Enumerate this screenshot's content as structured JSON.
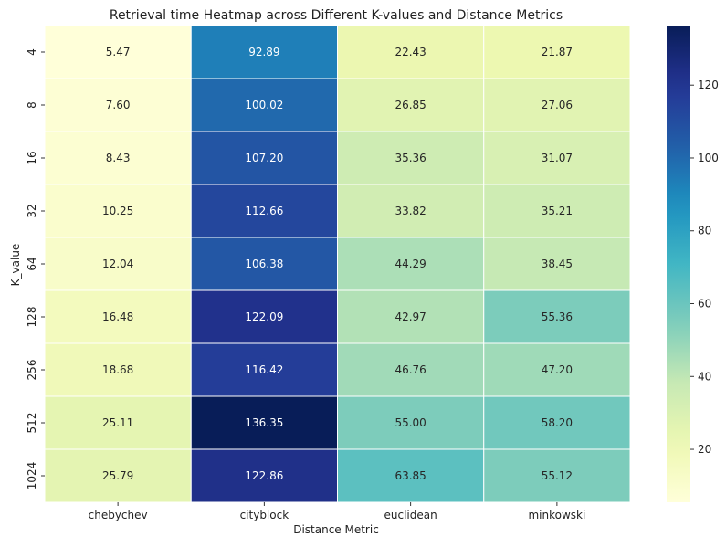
{
  "chart_data": {
    "type": "heatmap",
    "title": "Retrieval time Heatmap across Different K-values and Distance Metrics",
    "xlabel": "Distance Metric",
    "ylabel": "K_value",
    "x_categories": [
      "chebychev",
      "cityblock",
      "euclidean",
      "minkowski"
    ],
    "y_categories": [
      "4",
      "8",
      "16",
      "32",
      "64",
      "128",
      "256",
      "512",
      "1024"
    ],
    "values": [
      [
        5.47,
        92.89,
        22.43,
        21.87
      ],
      [
        7.6,
        100.02,
        26.85,
        27.06
      ],
      [
        8.43,
        107.2,
        35.36,
        31.07
      ],
      [
        10.25,
        112.66,
        33.82,
        35.21
      ],
      [
        12.04,
        106.38,
        44.29,
        38.45
      ],
      [
        16.48,
        122.09,
        42.97,
        55.36
      ],
      [
        18.68,
        116.42,
        46.76,
        47.2
      ],
      [
        25.11,
        136.35,
        55.0,
        58.2
      ],
      [
        25.79,
        122.86,
        63.85,
        55.12
      ]
    ],
    "value_labels": [
      [
        "5.47",
        "92.89",
        "22.43",
        "21.87"
      ],
      [
        "7.60",
        "100.02",
        "26.85",
        "27.06"
      ],
      [
        "8.43",
        "107.20",
        "35.36",
        "31.07"
      ],
      [
        "10.25",
        "112.66",
        "33.82",
        "35.21"
      ],
      [
        "12.04",
        "106.38",
        "44.29",
        "38.45"
      ],
      [
        "16.48",
        "122.09",
        "42.97",
        "55.36"
      ],
      [
        "18.68",
        "116.42",
        "46.76",
        "47.20"
      ],
      [
        "25.11",
        "136.35",
        "55.00",
        "58.20"
      ],
      [
        "25.79",
        "122.86",
        "63.85",
        "55.12"
      ]
    ],
    "colorbar": {
      "colormap": "YlGnBu",
      "min": 5.47,
      "max": 136.35,
      "ticks": [
        20,
        40,
        60,
        80,
        100,
        120
      ],
      "tick_labels": [
        "20",
        "40",
        "60",
        "80",
        "100",
        "120"
      ]
    },
    "grid": false,
    "legend": "colorbar-right"
  }
}
